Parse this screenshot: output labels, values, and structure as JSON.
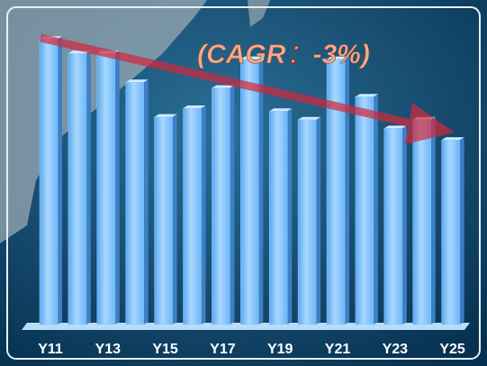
{
  "chart_data": {
    "type": "bar",
    "annotation": "(CAGR：-3%)",
    "categories": [
      "Y11",
      null,
      "Y13",
      null,
      "Y15",
      null,
      "Y17",
      null,
      "Y19",
      null,
      "Y21",
      null,
      "Y23",
      null,
      "Y25"
    ],
    "values": [
      99,
      94,
      94,
      84,
      72,
      75,
      82,
      92,
      74,
      71,
      92,
      79,
      68,
      71,
      64
    ],
    "color": "#8ccaff",
    "ylim": [
      0,
      100
    ]
  }
}
